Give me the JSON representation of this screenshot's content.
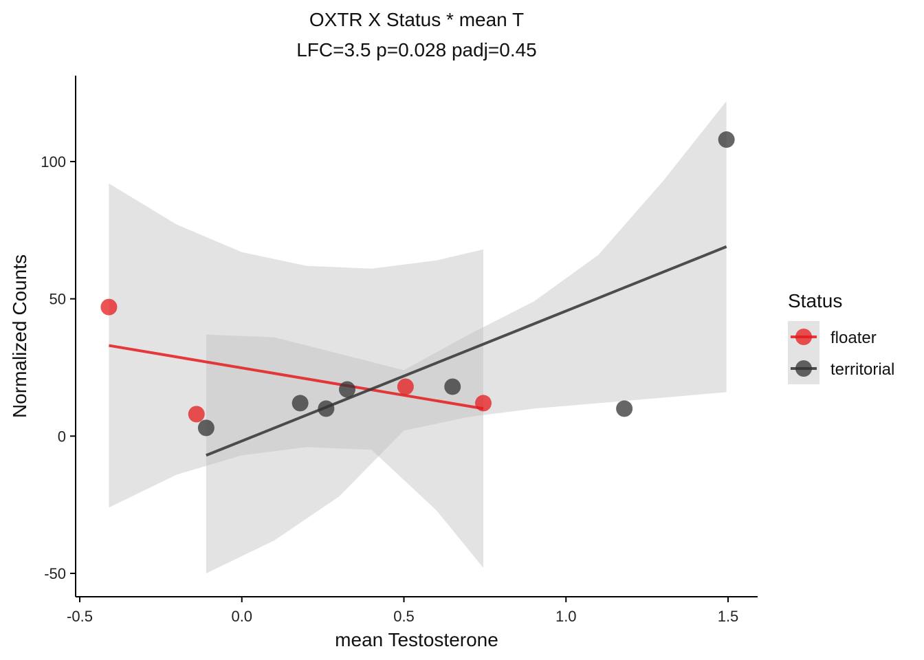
{
  "chart_data": {
    "type": "scatter",
    "title": "OXTR X Status * mean T",
    "subtitle": "LFC=3.5 p=0.028 padj=0.45",
    "xlabel": "mean Testosterone",
    "ylabel": "Normalized Counts",
    "xlim": [
      -0.52,
      1.58
    ],
    "ylim": [
      -58,
      131
    ],
    "x_ticks": [
      -0.5,
      0.0,
      0.5,
      1.0,
      1.5
    ],
    "x_tick_labels": [
      "-0.5",
      "0.0",
      "0.5",
      "1.0",
      "1.5"
    ],
    "y_ticks": [
      -50,
      0,
      50,
      100
    ],
    "y_tick_labels": [
      "-50",
      "0",
      "50",
      "100"
    ],
    "grid": false,
    "legend": {
      "title": "Status",
      "position": "right"
    },
    "series": [
      {
        "name": "floater",
        "color": "#e41a1c",
        "points": [
          {
            "x": -0.41,
            "y": 47
          },
          {
            "x": -0.14,
            "y": 8
          },
          {
            "x": 0.505,
            "y": 18
          },
          {
            "x": 0.745,
            "y": 12
          }
        ],
        "fit": {
          "x_start": -0.41,
          "y_start": 33,
          "x_end": 0.745,
          "y_end": 10
        },
        "band": {
          "x": [
            -0.41,
            -0.2,
            0.0,
            0.2,
            0.4,
            0.6,
            0.745
          ],
          "upper": [
            92,
            77,
            67,
            62,
            61,
            64,
            68
          ],
          "lower": [
            -26,
            -14,
            -7,
            -4,
            -5,
            -27,
            -48
          ]
        }
      },
      {
        "name": "territorial",
        "color": "#333333",
        "points": [
          {
            "x": -0.11,
            "y": 3
          },
          {
            "x": 0.18,
            "y": 12
          },
          {
            "x": 0.26,
            "y": 10
          },
          {
            "x": 0.325,
            "y": 17
          },
          {
            "x": 0.65,
            "y": 18
          },
          {
            "x": 1.18,
            "y": 10
          },
          {
            "x": 1.495,
            "y": 108
          }
        ],
        "fit": {
          "x_start": -0.11,
          "y_start": -7,
          "x_end": 1.495,
          "y_end": 69
        },
        "band": {
          "x": [
            -0.11,
            0.1,
            0.3,
            0.5,
            0.7,
            0.9,
            1.1,
            1.3,
            1.495
          ],
          "upper": [
            37,
            36,
            30,
            24,
            37,
            49,
            66,
            93,
            122
          ],
          "lower": [
            -50,
            -38,
            -22,
            2,
            7,
            10,
            12,
            14,
            16
          ]
        }
      }
    ]
  }
}
